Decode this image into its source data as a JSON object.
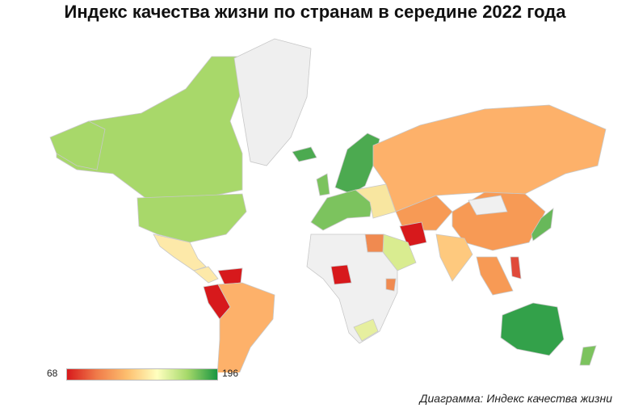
{
  "title": "Индекс качества жизни по странам в середине 2022 года",
  "legend": {
    "min": "68",
    "max": "196",
    "colors": [
      "#d7191c",
      "#f07c4a",
      "#fdbf6f",
      "#ffffbf",
      "#a6d96a",
      "#1a9641"
    ]
  },
  "caption": "Диаграмма: Индекс качества жизни",
  "colors": {
    "no_data": "#f0f0f0",
    "border": "#c8c8c8",
    "ocean": "#ffffff",
    "north_america": "#a8d86a",
    "greenland": "#efefef",
    "scandinavia": "#4caa50",
    "western_europe": "#7cc35e",
    "eastern_europe": "#f8e6a0",
    "russia": "#fdb16a",
    "china": "#f79a55",
    "iran": "#d7191c",
    "nigeria": "#d7191c",
    "venezuela": "#d7191c",
    "australia": "#33a14a",
    "new_zealand": "#7cc35e",
    "japan": "#68b85a",
    "mexico": "#fde9a9",
    "south_america": "#fdb16a",
    "india": "#fec97e",
    "philippines": "#e04a3a",
    "south_africa": "#e6ef9f",
    "egypt": "#f08a50",
    "saudi_arabia": "#d9ec90"
  }
}
